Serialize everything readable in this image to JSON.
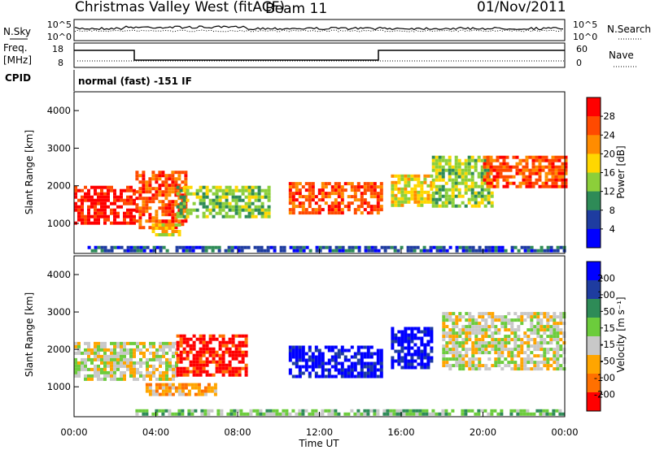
{
  "header": {
    "title": "Christmas Valley West (fitACF)",
    "beam": "Beam 11",
    "date": "01/Nov/2011"
  },
  "sky_panel": {
    "left_label": "N.Sky",
    "right_label": "N.Search",
    "ticks": [
      "10^5",
      "10^0"
    ]
  },
  "freq_panel": {
    "left_label": "Freq.",
    "unit": "[MHz]",
    "right_label": "Nave",
    "left_ticks": [
      "18",
      "8"
    ],
    "right_ticks": [
      "60",
      "0"
    ]
  },
  "cpid": {
    "label": "CPID",
    "value": "normal (fast) -151 IF"
  },
  "chart_data": [
    {
      "type": "heatmap",
      "name": "power-panel",
      "ylabel": "Slant Range [km]",
      "yticks": [
        "4000",
        "3000",
        "2000",
        "1000"
      ],
      "ylim": [
        200,
        4500
      ],
      "xlim": [
        0,
        24
      ],
      "colorbar_label": "Power [dB]",
      "colorbar_ticks": [
        "28",
        "24",
        "20",
        "16",
        "12",
        "8",
        "4"
      ],
      "colors": [
        "#ff0000",
        "#ff4a00",
        "#ff8c00",
        "#ffd700",
        "#8ccf3a",
        "#2e8b57",
        "#1e3ca0",
        "#0000ff"
      ],
      "echo_regions": [
        {
          "t0": 0.0,
          "t1": 3.0,
          "r0": 1000,
          "r1": 2000,
          "level": 0
        },
        {
          "t0": 3.0,
          "t1": 5.5,
          "r0": 900,
          "r1": 2400,
          "level": 1
        },
        {
          "t0": 3.8,
          "t1": 5.2,
          "r0": 700,
          "r1": 1000,
          "level": 3
        },
        {
          "t0": 5.0,
          "t1": 9.5,
          "r0": 1200,
          "r1": 2000,
          "level": 4
        },
        {
          "t0": 10.5,
          "t1": 15.0,
          "r0": 1300,
          "r1": 2100,
          "level": 1
        },
        {
          "t0": 15.5,
          "t1": 17.5,
          "r0": 1500,
          "r1": 2300,
          "level": 3
        },
        {
          "t0": 17.5,
          "t1": 20.5,
          "r0": 1500,
          "r1": 2800,
          "level": 4
        },
        {
          "t0": 20.0,
          "t1": 24.0,
          "r0": 2000,
          "r1": 2800,
          "level": 1
        },
        {
          "t0": 0.5,
          "t1": 24.0,
          "r0": 250,
          "r1": 400,
          "level": 6
        }
      ]
    },
    {
      "type": "heatmap",
      "name": "velocity-panel",
      "ylabel": "Slant Range [km]",
      "yticks": [
        "4000",
        "3000",
        "2000",
        "1000"
      ],
      "ylim": [
        200,
        4500
      ],
      "xlim": [
        0,
        24
      ],
      "colorbar_label": "Velocity [m s⁻¹]",
      "colorbar_ticks": [
        "200",
        "100",
        "50",
        "15",
        "-15",
        "-50",
        "-100",
        "-200"
      ],
      "colors": [
        "#0000ff",
        "#1e3ca0",
        "#2e8b57",
        "#6ccc3c",
        "#c8c8c8",
        "#ffa500",
        "#ff7000",
        "#ff0000"
      ],
      "echo_regions": [
        {
          "t0": 0.0,
          "t1": 5.0,
          "r0": 1200,
          "r1": 2200,
          "level": 4
        },
        {
          "t0": 5.0,
          "t1": 8.5,
          "r0": 1300,
          "r1": 2400,
          "level": 7
        },
        {
          "t0": 3.5,
          "t1": 7.0,
          "r0": 800,
          "r1": 1100,
          "level": 5
        },
        {
          "t0": 10.5,
          "t1": 15.0,
          "r0": 1300,
          "r1": 2100,
          "level": 0
        },
        {
          "t0": 15.5,
          "t1": 17.5,
          "r0": 1500,
          "r1": 2600,
          "level": 0
        },
        {
          "t0": 18.0,
          "t1": 24.0,
          "r0": 1500,
          "r1": 3000,
          "level": 4
        },
        {
          "t0": 3.0,
          "t1": 24.0,
          "r0": 250,
          "r1": 400,
          "level": 3
        }
      ]
    }
  ],
  "time_axis": {
    "xlabel": "Time UT",
    "ticks": [
      "00:00",
      "04:00",
      "08:00",
      "12:00",
      "16:00",
      "20:00",
      "00:00"
    ]
  }
}
